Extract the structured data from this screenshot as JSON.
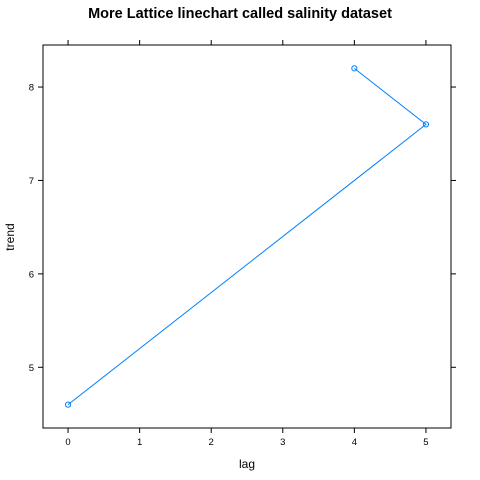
{
  "chart_data": {
    "type": "line",
    "title": "More Lattice linechart called salinity dataset",
    "xlabel": "lag",
    "ylabel": "trend",
    "x": [
      0,
      5,
      4
    ],
    "y": [
      4.6,
      7.6,
      8.2
    ],
    "xlim": [
      -0.35,
      5.35
    ],
    "ylim": [
      4.35,
      8.45
    ],
    "x_ticks": [
      0,
      1,
      2,
      3,
      4,
      5
    ],
    "y_ticks": [
      5,
      6,
      7,
      8
    ],
    "x_tick_labels": [
      "0",
      "1",
      "2",
      "3",
      "4",
      "5"
    ],
    "y_tick_labels": [
      "5",
      "6",
      "7",
      "8"
    ],
    "series_color": "#0080ff",
    "grid": false,
    "markers": "open-circle"
  }
}
